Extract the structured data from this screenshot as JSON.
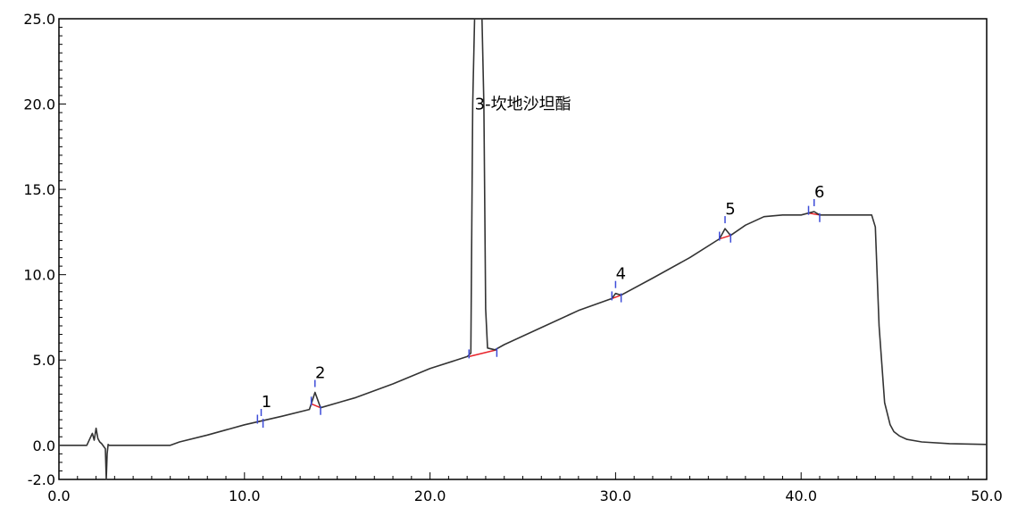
{
  "chart_data": {
    "type": "line",
    "title": "",
    "xlabel": "",
    "ylabel": "",
    "xlim": [
      0,
      50
    ],
    "ylim": [
      -2,
      25
    ],
    "grid": false,
    "x_ticks": [
      0.0,
      10.0,
      20.0,
      30.0,
      40.0,
      50.0
    ],
    "x_tick_labels": [
      "0.0",
      "10.0",
      "20.0",
      "30.0",
      "40.0",
      "50.0"
    ],
    "y_ticks": [
      -2.0,
      0.0,
      5.0,
      10.0,
      15.0,
      20.0,
      25.0
    ],
    "y_tick_labels": [
      "-2.0",
      "0.0",
      "5.0",
      "10.0",
      "15.0",
      "20.0",
      "25.0"
    ],
    "colors": {
      "trace": "#333333",
      "baseline": "#e8232a",
      "marker": "#3c4bd8",
      "axis": "#000000"
    },
    "series": [
      {
        "x": [
          0,
          1.5,
          1.8,
          1.9,
          2.0,
          2.1,
          2.2,
          2.3,
          2.5,
          2.55,
          2.6,
          2.65,
          2.7,
          3.0,
          4.0,
          5.0,
          6.0,
          6.5,
          8.0,
          10.0,
          12.0,
          13.5,
          13.8,
          14.1,
          16.0,
          18.0,
          20.0,
          22.0,
          22.2,
          22.3,
          22.4,
          22.8,
          22.9,
          23.0,
          23.1,
          23.5,
          24.0,
          26.0,
          28.0,
          29.8,
          30.0,
          30.3,
          32.0,
          34.0,
          35.6,
          35.9,
          36.2,
          37.0,
          38.0,
          39.0,
          40.0,
          40.7,
          41.0,
          42.0,
          43.0,
          43.8,
          44.0,
          44.2,
          44.5,
          44.8,
          45.0,
          45.3,
          45.7,
          46.5,
          48.0,
          50.0
        ],
        "y": [
          0.0,
          0.0,
          0.7,
          0.3,
          1.0,
          0.4,
          0.2,
          0.1,
          -0.2,
          -2.0,
          -0.5,
          0.05,
          0.0,
          0.0,
          0.0,
          0.0,
          0.0,
          0.2,
          0.6,
          1.2,
          1.7,
          2.1,
          3.1,
          2.2,
          2.8,
          3.6,
          4.5,
          5.2,
          5.4,
          20.0,
          25.0,
          25.0,
          20.0,
          8.0,
          5.7,
          5.6,
          5.9,
          6.9,
          7.9,
          8.6,
          8.9,
          8.8,
          9.8,
          11.0,
          12.1,
          12.7,
          12.3,
          12.9,
          13.4,
          13.5,
          13.5,
          13.7,
          13.5,
          13.5,
          13.5,
          13.5,
          12.8,
          7.0,
          2.5,
          1.2,
          0.8,
          0.55,
          0.35,
          0.2,
          0.1,
          0.05
        ]
      }
    ],
    "peaks": [
      {
        "label": "1",
        "x": 10.9,
        "y": 1.4,
        "start": 10.7,
        "end": 11.0
      },
      {
        "label": "2",
        "x": 13.8,
        "y": 3.1,
        "start": 13.6,
        "end": 14.1
      },
      {
        "label": "3-坎地沙坦酯",
        "x": 22.6,
        "y": 25.0,
        "start": 22.1,
        "end": 23.6
      },
      {
        "label": "4",
        "x": 30.0,
        "y": 8.9,
        "start": 29.8,
        "end": 30.3
      },
      {
        "label": "5",
        "x": 35.9,
        "y": 12.7,
        "start": 35.6,
        "end": 36.2
      },
      {
        "label": "6",
        "x": 40.7,
        "y": 13.7,
        "start": 40.4,
        "end": 41.0
      }
    ]
  }
}
